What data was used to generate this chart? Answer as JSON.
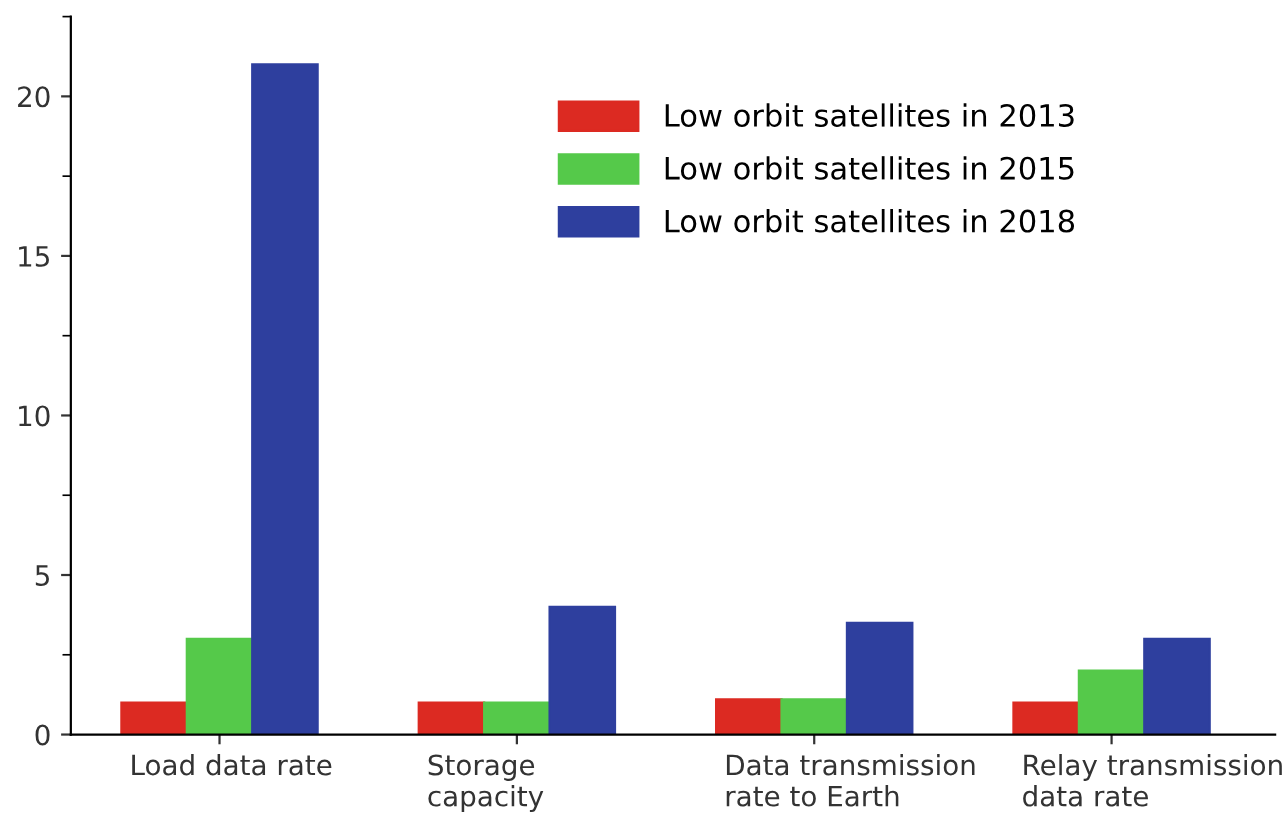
{
  "chart_data": {
    "type": "bar",
    "categories": [
      "Load data rate",
      "Storage\ncapacity",
      "Data transmission\nrate to Earth",
      "Relay transmission\ndata rate"
    ],
    "series": [
      {
        "name": "Low orbit satellites in 2013",
        "color": "#dc2a22",
        "values": [
          1,
          1,
          1.1,
          1
        ]
      },
      {
        "name": "Low orbit satellites in 2015",
        "color": "#55c94a",
        "values": [
          3,
          1,
          1.1,
          2
        ]
      },
      {
        "name": "Low orbit satellites in 2018",
        "color": "#2e3f9e",
        "values": [
          21,
          4,
          3.5,
          3
        ]
      }
    ],
    "ylim": [
      0,
      22.5
    ],
    "yticks": [
      0,
      5,
      10,
      15,
      20
    ],
    "legend": "top",
    "grid": false
  }
}
